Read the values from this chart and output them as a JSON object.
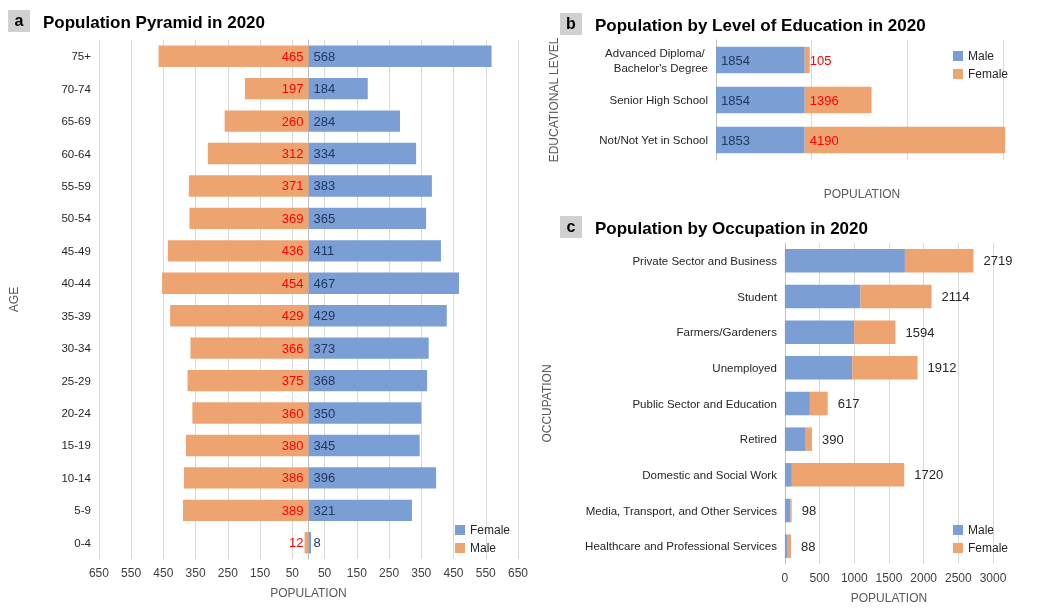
{
  "chart_data": [
    {
      "type": "bar",
      "title": "Population Pyramid in 2020",
      "annotations": [
        "a"
      ],
      "xlabel": "POPULATION",
      "ylabel": "AGE",
      "orientation": "horizontal",
      "categories": [
        "75+",
        "70-74",
        "65-69",
        "60-64",
        "55-59",
        "50-54",
        "45-49",
        "40-44",
        "35-39",
        "30-34",
        "25-29",
        "20-24",
        "15-19",
        "10-14",
        "5-9",
        "0-4"
      ],
      "series": [
        {
          "name": "Female",
          "color": "#7b9fd4",
          "values": [
            568,
            184,
            284,
            334,
            383,
            365,
            411,
            467,
            429,
            373,
            368,
            350,
            345,
            396,
            321,
            8
          ],
          "base": [
            0,
            0,
            0,
            0,
            0,
            0,
            0,
            0,
            0,
            0,
            0,
            0,
            0,
            0,
            0,
            0
          ],
          "value_labels": [
            "568",
            "184",
            "284",
            "334",
            "383",
            "365",
            "411",
            "467",
            "429",
            "373",
            "368",
            "350",
            "345",
            "396",
            "321",
            "8"
          ]
        },
        {
          "name": "Male",
          "color": "#eda470",
          "values": [
            465,
            197,
            260,
            312,
            371,
            369,
            436,
            454,
            429,
            366,
            375,
            360,
            380,
            386,
            389,
            12
          ],
          "base": [
            -465,
            -197,
            -260,
            -312,
            -371,
            -369,
            -436,
            -454,
            -429,
            -366,
            -375,
            -360,
            -380,
            -386,
            -389,
            -12
          ],
          "value_labels": [
            "465",
            "197",
            "260",
            "312",
            "371",
            "369",
            "436",
            "454",
            "429",
            "366",
            "375",
            "360",
            "380",
            "386",
            "389",
            "12"
          ]
        }
      ],
      "xlim": [
        -650,
        650
      ],
      "xticks": [
        {
          "value": -650,
          "label": "650"
        },
        {
          "value": -550,
          "label": "550"
        },
        {
          "value": -450,
          "label": "450"
        },
        {
          "value": -350,
          "label": "350"
        },
        {
          "value": -250,
          "label": "250"
        },
        {
          "value": -150,
          "label": "150"
        },
        {
          "value": -50,
          "label": "50"
        },
        50,
        150,
        250,
        350,
        450,
        550,
        650
      ],
      "grid": "x",
      "legend": "bottom right"
    },
    {
      "type": "bar",
      "title": "Population by Level of Education in 2020",
      "annotations": [
        "b"
      ],
      "xlabel": "POPULATION",
      "ylabel": "EDUCATIONAL LEVEL",
      "orientation": "horizontal",
      "stacked": true,
      "categories": [
        "Advanced Diploma/ Bachelor's Degree",
        "Senior High School",
        "Not/Not Yet in School"
      ],
      "series": [
        {
          "name": "Male",
          "color": "#7b9fd4",
          "values": [
            1854,
            1854,
            1853
          ]
        },
        {
          "name": "Female",
          "color": "#eda470",
          "values": [
            105,
            1396,
            4190
          ]
        }
      ],
      "xlim": [
        0,
        6100
      ],
      "xticks": [
        {
          "value": 0,
          "label": null
        },
        {
          "value": 2000,
          "label": null
        },
        {
          "value": 4000,
          "label": null
        },
        {
          "value": 6000,
          "label": null
        }
      ],
      "tick_labels": "y",
      "data_labels": true,
      "grid": "x",
      "legend": "top right"
    },
    {
      "type": "bar",
      "title": "Population by Occupation in 2020",
      "annotations": [
        "c"
      ],
      "xlabel": "POPULATION",
      "ylabel": "OCCUPATION",
      "orientation": "horizontal",
      "stacked": true,
      "categories": [
        "Private Sector and Business",
        "Student",
        "Farmers/Gardeners",
        "Unemployed",
        "Public Sector and Education",
        "Retired",
        "Domestic and Social Work",
        "Media, Transport, and Other Services",
        "Healthcare and Professional Services"
      ],
      "series": [
        {
          "name": "Male",
          "color": "#7b9fd4",
          "values": [
            1730,
            1090,
            1000,
            970,
            360,
            290,
            100,
            80,
            30
          ]
        },
        {
          "name": "Female",
          "color": "#eda470",
          "values": [
            989,
            1024,
            594,
            942,
            257,
            100,
            1620,
            18,
            58
          ]
        }
      ],
      "totals": [
        "2719",
        "2114",
        "1594",
        "1912",
        "617",
        "390",
        "1720",
        "98",
        "88"
      ],
      "xlim": [
        0,
        3000
      ],
      "xticks": [
        0,
        500,
        1000,
        1500,
        2000,
        2500,
        3000
      ],
      "grid": "x",
      "legend": "bottom right"
    }
  ]
}
